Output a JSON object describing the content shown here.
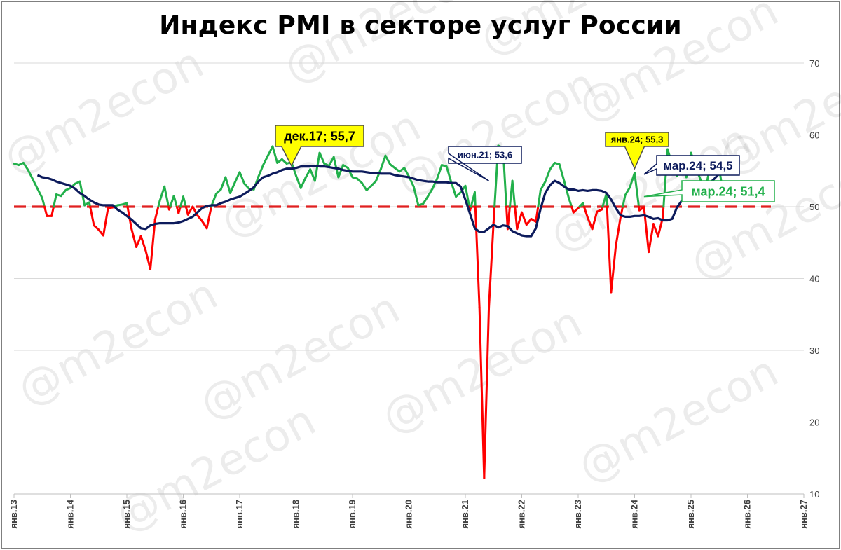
{
  "chart_data": {
    "type": "line",
    "title": "Индекс PMI в секторе услуг России",
    "watermark": "@m2econ",
    "y_axis": {
      "position": "right",
      "ylim": [
        10,
        70
      ],
      "ticks": [
        "10",
        "20",
        "30",
        "40",
        "50",
        "60",
        "70"
      ],
      "grid": true
    },
    "x_axis": {
      "range": [
        "2013-01",
        "2027-01"
      ],
      "ticks": [
        "янв.13",
        "янв.14",
        "янв.15",
        "янв.16",
        "янв.17",
        "янв.18",
        "янв.19",
        "янв.20",
        "янв.21",
        "янв.22",
        "янв.23",
        "янв.24",
        "янв.25",
        "янв.26",
        "янв.27"
      ]
    },
    "reference_line": {
      "y": 50,
      "style": "dashed",
      "color": "#e02020"
    },
    "colors": {
      "above_50": "#22b04b",
      "below_50": "#ff0000",
      "moving_average": "#0d1b5c",
      "callout_fill": "#ffff00",
      "grid": "#d9d9d9"
    },
    "series": [
      {
        "type": "line",
        "role": "monthly index",
        "color_rule": "green above 50, red below 50",
        "start": "2013-01",
        "values": [
          56.0,
          55.8,
          56.1,
          55.1,
          53.8,
          52.5,
          51.2,
          48.7,
          48.7,
          51.7,
          51.5,
          52.3,
          52.6,
          53.2,
          53.5,
          50.2,
          50.6,
          47.4,
          46.8,
          46.0,
          49.8,
          49.9,
          50.2,
          50.3,
          50.5,
          46.9,
          44.4,
          45.9,
          43.9,
          41.3,
          48.2,
          50.8,
          52.8,
          49.6,
          51.5,
          49.1,
          51.4,
          48.9,
          50.0,
          48.8,
          48.0,
          47.0,
          50.1,
          51.8,
          52.4,
          54.1,
          51.9,
          53.4,
          54.8,
          53.2,
          52.5,
          52.4,
          54.2,
          55.8,
          57.1,
          58.4,
          56.1,
          56.6,
          56.0,
          56.2,
          54.3,
          52.6,
          54.0,
          55.2,
          53.6,
          57.5,
          56.0,
          55.7,
          56.9,
          54.1,
          55.8,
          55.4,
          54.1,
          53.9,
          53.3,
          52.3,
          52.9,
          53.6,
          55.2,
          57.1,
          55.9,
          55.4,
          54.9,
          55.4,
          54.2,
          52.8,
          50.2,
          50.4,
          51.4,
          52.5,
          53.9,
          55.8,
          55.6,
          53.4,
          51.4,
          52.0,
          52.9,
          49.5,
          52.0,
          36.0,
          12.2,
          35.9,
          47.8,
          58.5,
          58.2,
          46.9,
          53.6,
          46.9,
          49.2,
          47.5,
          48.3,
          47.9,
          52.3,
          53.5,
          55.2,
          56.1,
          55.9,
          53.6,
          51.2,
          49.2,
          49.8,
          50.5,
          48.5,
          46.9,
          49.3,
          49.6,
          51.8,
          38.1,
          44.5,
          48.5,
          51.6,
          52.7,
          54.7,
          49.5,
          49.9,
          43.7,
          47.6,
          45.9,
          48.5,
          58.0,
          55.9,
          54.3,
          56.8,
          54.1,
          57.5,
          55.5,
          53.8,
          52.2,
          55.4,
          56.1,
          55.3,
          51.1,
          51.4
        ]
      },
      {
        "type": "line",
        "role": "12-month moving average",
        "color": "#0d1b5c",
        "start": "2013-06",
        "values": [
          54.4,
          54.1,
          54.0,
          53.8,
          53.5,
          53.3,
          53.1,
          52.9,
          52.5,
          51.9,
          51.5,
          51.0,
          50.6,
          50.3,
          50.2,
          50.2,
          50.2,
          49.6,
          49.2,
          48.7,
          48.2,
          47.6,
          47.0,
          46.9,
          47.4,
          47.6,
          47.7,
          47.7,
          47.7,
          47.7,
          47.8,
          48.0,
          48.3,
          48.6,
          49.2,
          49.8,
          50.1,
          50.2,
          50.2,
          50.5,
          50.7,
          51.0,
          51.2,
          51.4,
          51.8,
          52.2,
          52.7,
          53.5,
          54.1,
          54.3,
          54.6,
          54.8,
          55.1,
          55.3,
          55.3,
          55.4,
          55.6,
          55.6,
          55.6,
          55.7,
          55.6,
          55.6,
          55.5,
          55.4,
          55.3,
          55.1,
          55.0,
          54.9,
          54.9,
          54.9,
          54.8,
          54.7,
          54.7,
          54.6,
          54.6,
          54.6,
          54.4,
          54.3,
          54.2,
          54.1,
          53.9,
          53.7,
          53.6,
          53.5,
          53.5,
          53.4,
          53.4,
          53.4,
          53.3,
          53.3,
          52.8,
          51.0,
          49.0,
          47.0,
          46.5,
          46.5,
          47.0,
          47.5,
          47.1,
          47.4,
          47.3,
          46.6,
          46.3,
          46.0,
          45.9,
          45.9,
          47.0,
          49.7,
          51.9,
          53.0,
          53.6,
          53.3,
          52.8,
          52.4,
          52.4,
          52.2,
          52.3,
          52.2,
          52.3,
          52.3,
          52.2,
          51.9,
          51.0,
          49.8,
          48.8,
          48.6,
          48.6,
          48.7,
          48.7,
          48.8,
          48.6,
          48.3,
          48.4,
          48.1,
          48.1,
          48.3,
          49.9,
          50.8,
          51.3,
          51.8,
          52.0,
          52.0,
          52.5,
          53.3,
          53.9,
          54.6,
          55.3,
          55.1,
          54.5
        ]
      }
    ],
    "callouts": [
      {
        "text": "дек.17; 55,7",
        "date": "2017-12",
        "value": 55.7,
        "style": "yellow"
      },
      {
        "text": "июн.21; 53,6",
        "date": "2021-06",
        "value": 53.6,
        "style": "navy"
      },
      {
        "text": "янв.24; 55,3",
        "date": "2024-01",
        "value": 55.3,
        "style": "yellow"
      },
      {
        "text": "мар.24; 54,5",
        "date": "2024-03",
        "value": 54.5,
        "style": "navy"
      },
      {
        "text": "мар.24; 51,4",
        "date": "2024-03",
        "value": 51.4,
        "style": "green"
      }
    ]
  }
}
